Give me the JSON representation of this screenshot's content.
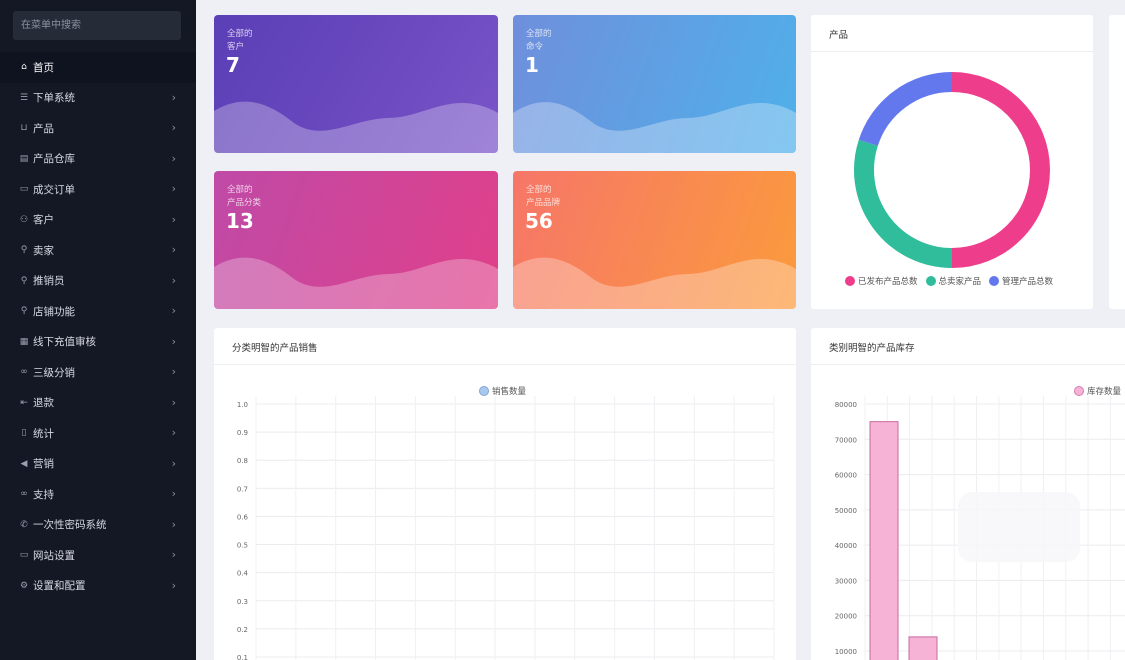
{
  "sidebar": {
    "search_placeholder": "在菜单中搜索",
    "items": [
      {
        "label": "首页",
        "icon": "home-icon",
        "glyph": "⌂",
        "active": true
      },
      {
        "label": "下单系统",
        "icon": "list-icon",
        "glyph": "☰"
      },
      {
        "label": "产品",
        "icon": "cart-icon",
        "glyph": "⊔"
      },
      {
        "label": "产品仓库",
        "icon": "warehouse-icon",
        "glyph": "▤"
      },
      {
        "label": "成交订单",
        "icon": "order-icon",
        "glyph": "▭"
      },
      {
        "label": "客户",
        "icon": "users-icon",
        "glyph": "⚇"
      },
      {
        "label": "卖家",
        "icon": "user-icon",
        "glyph": "⚲"
      },
      {
        "label": "推销员",
        "icon": "user-icon",
        "glyph": "⚲"
      },
      {
        "label": "店铺功能",
        "icon": "user-icon",
        "glyph": "⚲"
      },
      {
        "label": "线下充值审核",
        "icon": "card-icon",
        "glyph": "▦"
      },
      {
        "label": "三级分销",
        "icon": "link-icon",
        "glyph": "∞"
      },
      {
        "label": "退款",
        "icon": "refund-icon",
        "glyph": "⇤"
      },
      {
        "label": "统计",
        "icon": "file-icon",
        "glyph": "▯"
      },
      {
        "label": "营销",
        "icon": "megaphone-icon",
        "glyph": "◀"
      },
      {
        "label": "支持",
        "icon": "link-icon",
        "glyph": "∞"
      },
      {
        "label": "一次性密码系统",
        "icon": "phone-icon",
        "glyph": "✆"
      },
      {
        "label": "网站设置",
        "icon": "monitor-icon",
        "glyph": "▭"
      },
      {
        "label": "设置和配置",
        "icon": "gear-icon",
        "glyph": "⚙"
      }
    ]
  },
  "cards": [
    {
      "line1": "全部的",
      "line2": "客户",
      "value": "7"
    },
    {
      "line1": "全部的",
      "line2": "命令",
      "value": "1"
    },
    {
      "line1": "全部的",
      "line2": "产品分类",
      "value": "13"
    },
    {
      "line1": "全部的",
      "line2": "产品品牌",
      "value": "56"
    }
  ],
  "donut_panel": {
    "title": "产品",
    "legend": [
      {
        "label": "已发布产品总数",
        "color": "#ee3d8b"
      },
      {
        "label": "总卖家产品",
        "color": "#2fbd9c"
      },
      {
        "label": "管理产品总数",
        "color": "#6478ee"
      }
    ]
  },
  "sales_panel": {
    "title": "分类明智的产品销售",
    "legend": "销售数量"
  },
  "stock_panel": {
    "title": "类别明智的产品库存",
    "legend": "库存数量"
  },
  "chart_data": [
    {
      "type": "pie",
      "title": "产品",
      "categories": [
        "已发布产品总数",
        "总卖家产品",
        "管理产品总数"
      ],
      "values": [
        50,
        30,
        20
      ],
      "colors": [
        "#ee3d8b",
        "#2fbd9c",
        "#6478ee"
      ]
    },
    {
      "type": "bar",
      "title": "分类明智的产品销售",
      "series": [
        {
          "name": "销售数量",
          "values": []
        }
      ],
      "yticks": [
        "1.0",
        "0.9",
        "0.8",
        "0.7",
        "0.6",
        "0.5",
        "0.4",
        "0.3",
        "0.2",
        "0.1"
      ],
      "ylim": [
        0,
        1.0
      ],
      "color": "#a9c8ec"
    },
    {
      "type": "bar",
      "title": "类别明智的产品库存",
      "series": [
        {
          "name": "库存数量",
          "values": [
            75000,
            14000
          ]
        }
      ],
      "yticks": [
        "80000",
        "70000",
        "60000",
        "50000",
        "40000",
        "30000",
        "20000",
        "10000"
      ],
      "ylim": [
        0,
        80000
      ],
      "color": "#f7b3d6"
    }
  ]
}
